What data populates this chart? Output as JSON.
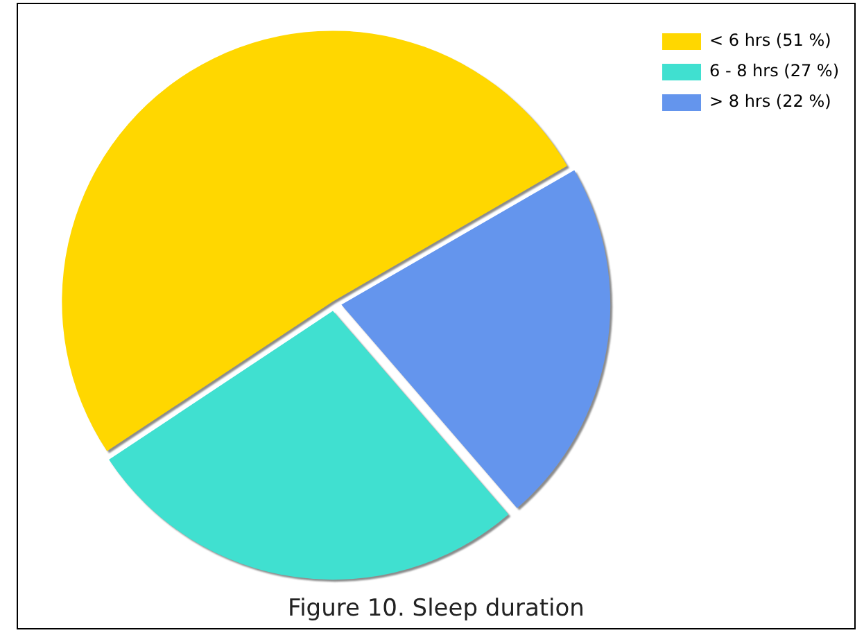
{
  "chart_data": {
    "type": "pie",
    "title": "Figure 10. Sleep duration",
    "categories": [
      "< 6 hrs (51 %)",
      "6 - 8 hrs (27 %)",
      "> 8 hrs (22 %)"
    ],
    "values": [
      51,
      27,
      22
    ],
    "colors": [
      "#ffd700",
      "#40e0d0",
      "#6495ed"
    ],
    "legend": "top right"
  }
}
